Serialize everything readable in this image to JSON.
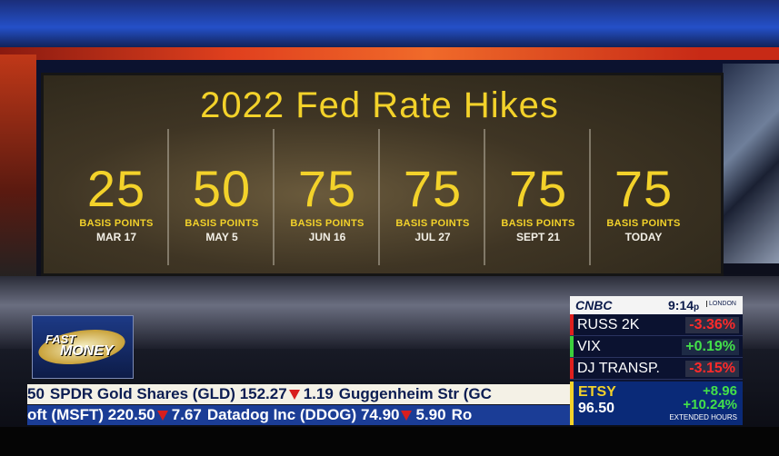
{
  "board": {
    "title": "2022 Fed Rate Hikes",
    "hikes": [
      {
        "value": 25,
        "unit": "BASIS POINTS",
        "date": "MAR 17"
      },
      {
        "value": 50,
        "unit": "BASIS POINTS",
        "date": "MAY 5"
      },
      {
        "value": 75,
        "unit": "BASIS POINTS",
        "date": "JUN 16"
      },
      {
        "value": 75,
        "unit": "BASIS POINTS",
        "date": "JUL 27"
      },
      {
        "value": 75,
        "unit": "BASIS POINTS",
        "date": "SEPT 21"
      },
      {
        "value": 75,
        "unit": "BASIS POINTS",
        "date": "TODAY"
      }
    ]
  },
  "show": {
    "line1": "FAST",
    "line2": "MONEY"
  },
  "panel": {
    "network": "CNBC",
    "time": "9:14",
    "time_suffix": "p",
    "market": "LONDON",
    "indices": [
      {
        "name": "RUSS 2K",
        "change": "-3.36%",
        "direction": "down"
      },
      {
        "name": "VIX",
        "change": "+0.19%",
        "direction": "up"
      },
      {
        "name": "DJ TRANSP.",
        "change": "-3.15%",
        "direction": "down"
      }
    ],
    "featured": {
      "symbol": "ETSY",
      "price": "96.50",
      "change": "+8.96",
      "percent": "+10.24%",
      "note": "EXTENDED HOURS"
    }
  },
  "ticker_top": [
    {
      "name": "50"
    },
    {
      "name": "SPDR Gold Shares (GLD)",
      "price": "152.27",
      "change": "1.19"
    },
    {
      "name": "Guggenheim Str (GC"
    }
  ],
  "ticker_bottom": [
    {
      "name": "oft (MSFT)",
      "price": "220.50",
      "change": "7.67"
    },
    {
      "name": "Datadog Inc (DDOG)",
      "price": "74.90",
      "change": "5.90"
    },
    {
      "name": "Ro"
    }
  ]
}
